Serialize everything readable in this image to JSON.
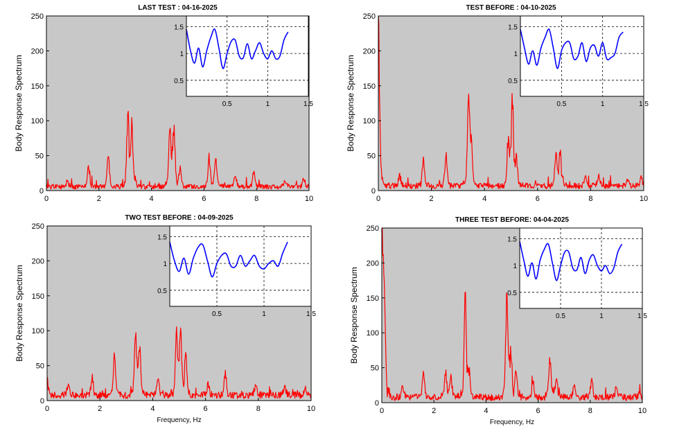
{
  "chart_data": [
    {
      "type": "line",
      "title": "LAST TEST : 04-16-2025",
      "xlabel": "",
      "ylabel": "Body Response Spectrum",
      "xlim": [
        0,
        10
      ],
      "ylim": [
        0,
        250
      ],
      "xticks": [
        0,
        2,
        4,
        6,
        8,
        10
      ],
      "yticks": [
        0,
        50,
        100,
        150,
        200,
        250
      ],
      "grid": false,
      "series": [
        {
          "color": "#ff0000",
          "peaks": [
            [
              0.0,
              3
            ],
            [
              0.8,
              8
            ],
            [
              1.6,
              28
            ],
            [
              2.35,
              52
            ],
            [
              3.1,
              105
            ],
            [
              3.25,
              90
            ],
            [
              4.7,
              92
            ],
            [
              4.85,
              88
            ],
            [
              5.1,
              28
            ],
            [
              6.2,
              45
            ],
            [
              6.45,
              40
            ],
            [
              7.2,
              18
            ],
            [
              7.9,
              22
            ],
            [
              9.1,
              10
            ],
            [
              9.8,
              12
            ]
          ],
          "baseline": 5
        }
      ],
      "inset": {
        "xlim": [
          0,
          1.5
        ],
        "ylim": [
          0.2,
          1.7
        ],
        "xticks": [
          0.5,
          1,
          1.5
        ],
        "yticks": [
          0.5,
          1,
          1.5
        ],
        "grid": "dashed",
        "color": "#0000ff",
        "x": [
          0.0,
          0.05,
          0.1,
          0.15,
          0.2,
          0.25,
          0.3,
          0.35,
          0.4,
          0.45,
          0.5,
          0.55,
          0.6,
          0.65,
          0.7,
          0.75,
          0.8,
          0.85,
          0.9,
          0.95,
          1.0,
          1.05,
          1.1,
          1.15,
          1.2,
          1.25
        ],
        "y": [
          1.45,
          1.05,
          0.82,
          1.1,
          0.75,
          1.05,
          1.3,
          1.45,
          1.1,
          0.72,
          1.0,
          1.22,
          1.25,
          0.95,
          0.92,
          1.18,
          0.9,
          1.05,
          1.2,
          1.0,
          0.9,
          1.05,
          0.9,
          0.95,
          1.25,
          1.4
        ]
      }
    },
    {
      "type": "line",
      "title": "TEST BEFORE : 04-10-2025",
      "xlabel": "",
      "ylabel": "Body Response Spectrum",
      "xlim": [
        0,
        10
      ],
      "ylim": [
        0,
        250
      ],
      "xticks": [
        0,
        2,
        4,
        6,
        8,
        10
      ],
      "yticks": [
        0,
        50,
        100,
        150,
        200,
        250
      ],
      "grid": false,
      "series": [
        {
          "color": "#ff0000",
          "peaks": [
            [
              0.0,
              250
            ],
            [
              0.8,
              18
            ],
            [
              1.7,
              40
            ],
            [
              2.55,
              48
            ],
            [
              3.4,
              125
            ],
            [
              3.5,
              60
            ],
            [
              4.9,
              70
            ],
            [
              5.05,
              125
            ],
            [
              5.2,
              40
            ],
            [
              6.7,
              50
            ],
            [
              6.85,
              48
            ],
            [
              7.8,
              18
            ],
            [
              8.3,
              20
            ],
            [
              9.4,
              12
            ],
            [
              9.9,
              15
            ]
          ],
          "baseline": 6
        }
      ],
      "inset": {
        "xlim": [
          0,
          1.5
        ],
        "ylim": [
          0.2,
          1.7
        ],
        "xticks": [
          0.5,
          1,
          1.5
        ],
        "yticks": [
          0.5,
          1,
          1.5
        ],
        "grid": "dashed",
        "color": "#0000ff",
        "x": [
          0.0,
          0.05,
          0.1,
          0.15,
          0.2,
          0.25,
          0.3,
          0.35,
          0.4,
          0.45,
          0.5,
          0.55,
          0.6,
          0.65,
          0.7,
          0.75,
          0.8,
          0.85,
          0.9,
          0.95,
          1.0,
          1.05,
          1.1,
          1.15,
          1.2,
          1.25
        ],
        "y": [
          1.45,
          1.1,
          0.8,
          1.05,
          0.78,
          1.1,
          1.3,
          1.45,
          1.1,
          0.72,
          1.05,
          1.2,
          1.2,
          0.9,
          0.95,
          1.2,
          0.85,
          1.1,
          1.15,
          0.95,
          1.2,
          0.9,
          0.92,
          1.0,
          1.3,
          1.4
        ]
      }
    },
    {
      "type": "line",
      "title": "TWO TEST BEFORE : 04-09-2025",
      "xlabel": "Frequency, Hz",
      "ylabel": "Body Response Spectrum",
      "xlim": [
        0,
        10
      ],
      "ylim": [
        0,
        250
      ],
      "xticks": [
        0,
        2,
        4,
        6,
        8,
        10
      ],
      "yticks": [
        0,
        50,
        100,
        150,
        200,
        250
      ],
      "grid": false,
      "series": [
        {
          "color": "#ff0000",
          "peaks": [
            [
              0.0,
              25
            ],
            [
              0.8,
              15
            ],
            [
              1.7,
              28
            ],
            [
              2.55,
              60
            ],
            [
              3.35,
              92
            ],
            [
              3.5,
              75
            ],
            [
              4.2,
              25
            ],
            [
              4.9,
              80
            ],
            [
              5.05,
              95
            ],
            [
              5.25,
              60
            ],
            [
              6.1,
              18
            ],
            [
              6.75,
              32
            ],
            [
              7.9,
              14
            ],
            [
              9.0,
              12
            ],
            [
              9.8,
              10
            ]
          ],
          "baseline": 7
        }
      ],
      "inset": {
        "xlim": [
          0,
          1.5
        ],
        "ylim": [
          0.2,
          1.7
        ],
        "xticks": [
          0.5,
          1,
          1.5
        ],
        "yticks": [
          0.5,
          1,
          1.5
        ],
        "grid": "dashed",
        "color": "#0000ff",
        "x": [
          0.0,
          0.05,
          0.1,
          0.15,
          0.2,
          0.25,
          0.3,
          0.35,
          0.4,
          0.45,
          0.5,
          0.55,
          0.6,
          0.65,
          0.7,
          0.75,
          0.8,
          0.85,
          0.9,
          0.95,
          1.0,
          1.05,
          1.1,
          1.15,
          1.2,
          1.25
        ],
        "y": [
          1.4,
          1.05,
          0.85,
          1.1,
          0.8,
          1.1,
          1.3,
          1.35,
          1.05,
          0.75,
          1.0,
          1.15,
          1.18,
          0.95,
          0.95,
          1.15,
          0.95,
          1.05,
          1.15,
          0.95,
          0.9,
          1.0,
          1.05,
          0.95,
          1.2,
          1.4
        ]
      }
    },
    {
      "type": "line",
      "title": "THREE TEST BEFORE:   04-04-2025",
      "xlabel": "Frequency, Hz",
      "ylabel": "Body Response Spectrum",
      "xlim": [
        0,
        10
      ],
      "ylim": [
        0,
        250
      ],
      "xticks": [
        0,
        2,
        4,
        6,
        8,
        10
      ],
      "yticks": [
        0,
        50,
        100,
        150,
        200,
        250
      ],
      "grid": false,
      "series": [
        {
          "color": "#ff0000",
          "peaks": [
            [
              0.0,
              250
            ],
            [
              0.1,
              150
            ],
            [
              0.8,
              15
            ],
            [
              1.6,
              38
            ],
            [
              2.45,
              40
            ],
            [
              2.65,
              30
            ],
            [
              3.2,
              150
            ],
            [
              3.35,
              40
            ],
            [
              4.8,
              150
            ],
            [
              4.95,
              65
            ],
            [
              5.15,
              35
            ],
            [
              5.8,
              25
            ],
            [
              6.45,
              58
            ],
            [
              6.7,
              30
            ],
            [
              7.4,
              20
            ],
            [
              8.05,
              26
            ],
            [
              9.0,
              14
            ],
            [
              9.9,
              10
            ]
          ],
          "baseline": 7
        }
      ],
      "inset": {
        "xlim": [
          0,
          1.5
        ],
        "ylim": [
          0.2,
          1.7
        ],
        "xticks": [
          0.5,
          1,
          1.5
        ],
        "yticks": [
          0.5,
          1,
          1.5
        ],
        "grid": "dashed",
        "color": "#0000ff",
        "x": [
          0.0,
          0.05,
          0.1,
          0.15,
          0.2,
          0.25,
          0.3,
          0.35,
          0.4,
          0.45,
          0.5,
          0.55,
          0.6,
          0.65,
          0.7,
          0.75,
          0.8,
          0.85,
          0.9,
          0.95,
          1.0,
          1.05,
          1.1,
          1.15,
          1.2,
          1.25
        ],
        "y": [
          1.45,
          1.1,
          0.8,
          1.05,
          0.75,
          1.1,
          1.3,
          1.4,
          1.05,
          0.72,
          1.0,
          1.25,
          1.25,
          0.95,
          0.92,
          1.15,
          0.85,
          1.1,
          1.2,
          1.0,
          0.9,
          1.0,
          0.85,
          0.95,
          1.25,
          1.4
        ]
      }
    }
  ]
}
